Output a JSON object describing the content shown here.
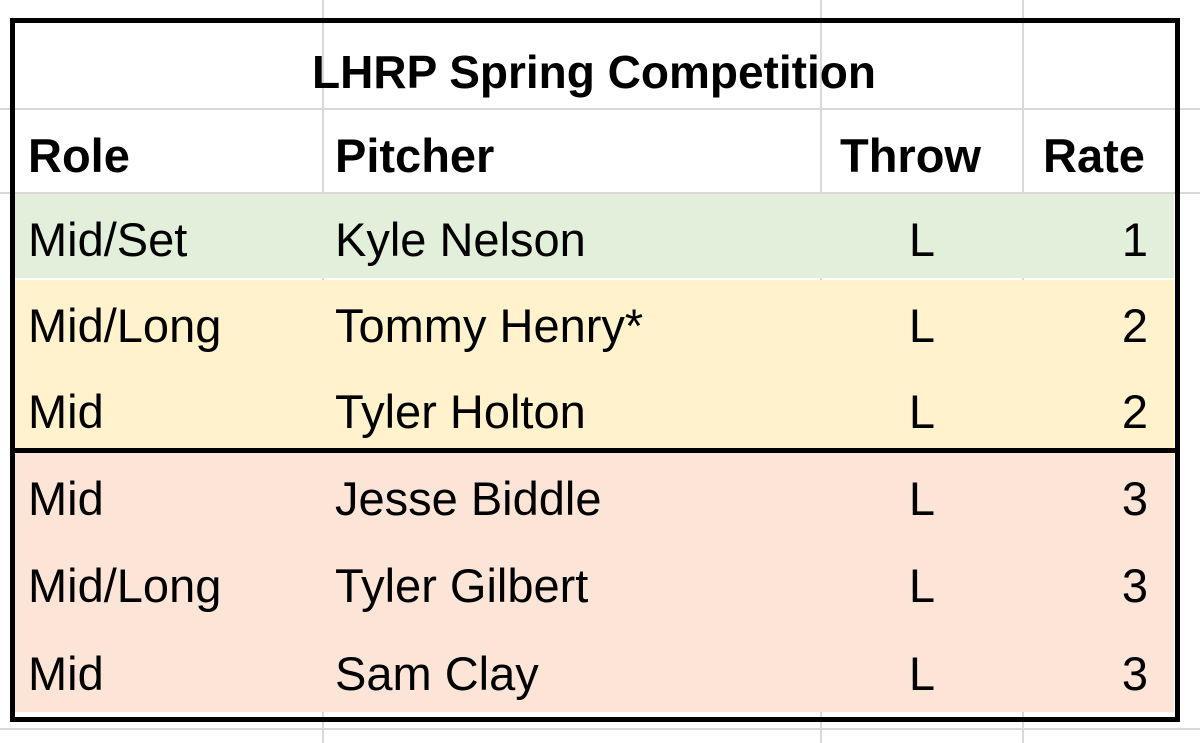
{
  "table": {
    "title": "LHRP Spring Competition",
    "headers": [
      "Role",
      "Pitcher",
      "Throw",
      "Rate"
    ],
    "rows": [
      [
        "Mid/Set",
        "Kyle Nelson",
        "L",
        1
      ],
      [
        "Mid/Long",
        "Tommy Henry*",
        "L",
        2
      ],
      [
        "Mid",
        "Tyler Holton",
        "L",
        2
      ],
      [
        "Mid",
        "Jesse Biddle",
        "L",
        3
      ],
      [
        "Mid/Long",
        "Tyler Gilbert",
        "L",
        3
      ],
      [
        "Mid",
        "Sam Clay",
        "L",
        3
      ]
    ]
  }
}
